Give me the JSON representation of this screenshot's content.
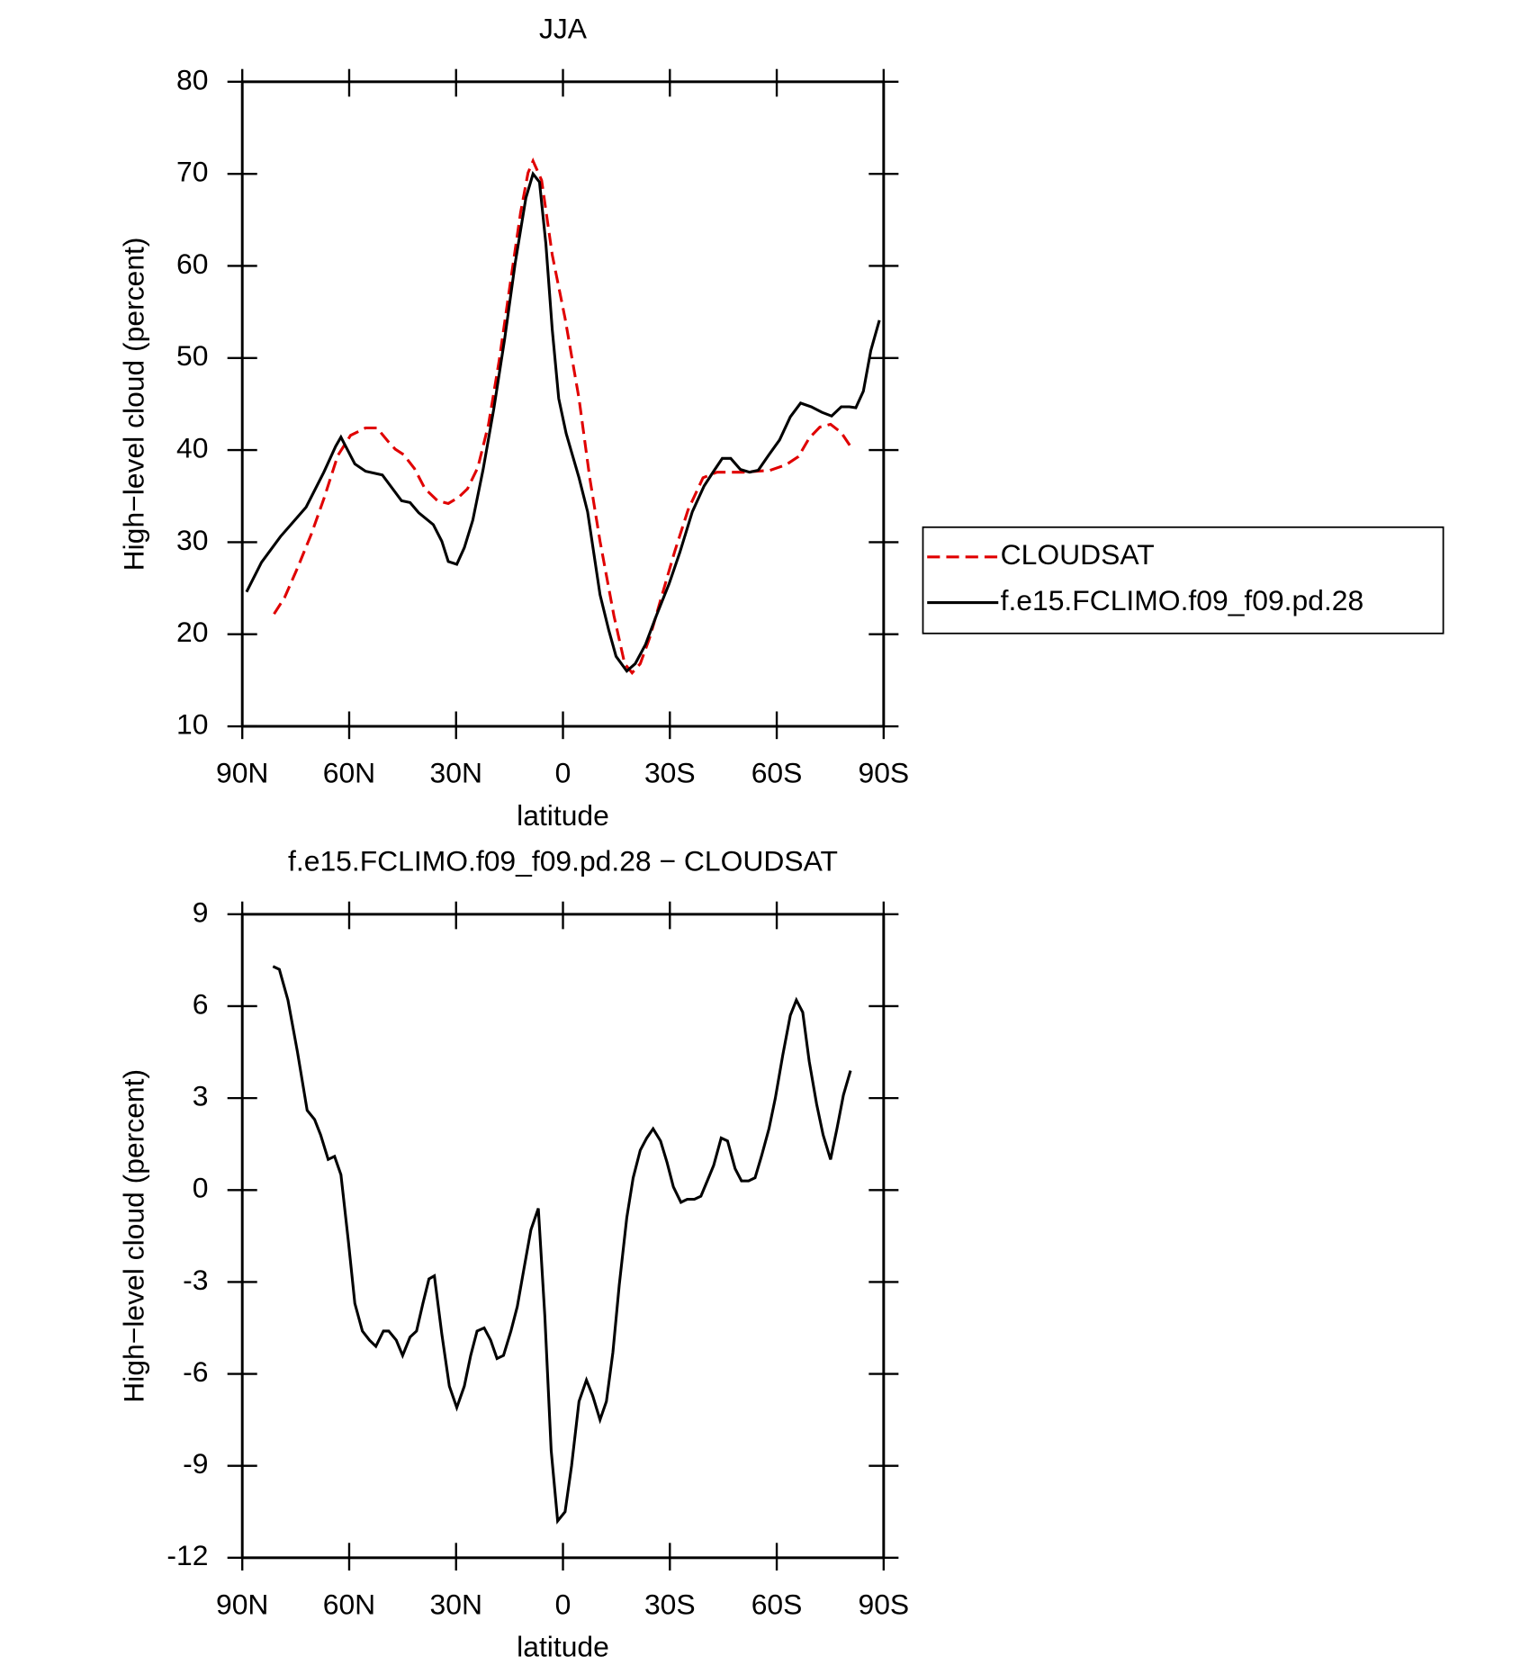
{
  "chart_data": [
    {
      "type": "line",
      "title": "JJA",
      "xlabel": "latitude",
      "ylabel": "High−level cloud (percent)",
      "xlim": [
        90,
        -90
      ],
      "xticks": [
        {
          "value": 90,
          "label": "90N"
        },
        {
          "value": 60,
          "label": "60N"
        },
        {
          "value": 30,
          "label": "30N"
        },
        0,
        {
          "value": -30,
          "label": "30S"
        },
        {
          "value": -60,
          "label": "60S"
        },
        {
          "value": -90,
          "label": "90S"
        }
      ],
      "ylim": [
        10,
        80
      ],
      "yticks": [
        10,
        20,
        30,
        40,
        50,
        60,
        70,
        80
      ],
      "legend": "right",
      "series": [
        {
          "name": "CLOUDSAT",
          "color": "#e00000",
          "linestyle": "dashed",
          "x": [
            81.1,
            78.1,
            74.5,
            70.6,
            67.1,
            63.2,
            59.6,
            55.4,
            52.2,
            49.2,
            47.1,
            44.7,
            41.7,
            38.7,
            35.2,
            32.2,
            29.2,
            26.8,
            23.9,
            20.9,
            17.9,
            14.9,
            11.9,
            9.8,
            8.4,
            6.0,
            3.0,
            -0.6,
            -4.5,
            -7.5,
            -10.4,
            -14.3,
            -17.3,
            -19.4,
            -21.7,
            -24.4,
            -27.4,
            -31.3,
            -35.1,
            -39.3,
            -43.2,
            -50.6,
            -58.1,
            -62.6,
            -66.1,
            -69.1,
            -72.1,
            -75.1,
            -78.1,
            -80.7
          ],
          "values": [
            22.2,
            24.0,
            27.2,
            30.9,
            34.7,
            39.4,
            41.6,
            42.4,
            42.4,
            41.0,
            40.1,
            39.5,
            38.0,
            35.8,
            34.5,
            34.2,
            34.9,
            35.8,
            38.1,
            42.8,
            49.7,
            57.8,
            65.8,
            70.1,
            71.4,
            69.3,
            61.2,
            54.3,
            45.6,
            37.0,
            30.1,
            22.0,
            16.8,
            15.8,
            16.8,
            19.7,
            23.7,
            28.9,
            33.5,
            37.0,
            37.6,
            37.6,
            37.8,
            38.4,
            39.3,
            41.3,
            42.5,
            42.8,
            41.9,
            40.4
          ]
        },
        {
          "name": "f.e15.FCLIMO.f09_f09.pd.28",
          "color": "#000000",
          "linestyle": "solid",
          "x": [
            88.8,
            84.6,
            79.3,
            72.1,
            67.1,
            63.8,
            62.3,
            58.4,
            55.4,
            50.7,
            45.3,
            42.9,
            40.5,
            36.4,
            34.0,
            32.2,
            29.8,
            27.7,
            25.3,
            22.4,
            19.4,
            16.4,
            13.4,
            10.4,
            8.4,
            6.6,
            4.8,
            3.0,
            1.2,
            -0.9,
            -4.5,
            -6.9,
            -10.4,
            -12.8,
            -14.9,
            -17.9,
            -20.3,
            -23.2,
            -26.2,
            -29.8,
            -32.8,
            -36.3,
            -39.6,
            -42.3,
            -44.7,
            -47.1,
            -49.8,
            -52.4,
            -54.8,
            -57.8,
            -60.8,
            -63.8,
            -66.7,
            -69.7,
            -72.7,
            -75.4,
            -78.1,
            -80.4,
            -82.2,
            -84.3,
            -86.4,
            -88.8
          ],
          "values": [
            24.6,
            27.8,
            30.6,
            33.8,
            37.6,
            40.4,
            41.4,
            38.5,
            37.7,
            37.3,
            34.5,
            34.3,
            33.2,
            31.9,
            30.1,
            27.9,
            27.6,
            29.4,
            32.4,
            37.9,
            44.5,
            52.0,
            60.3,
            67.4,
            70.0,
            69.1,
            62.4,
            53.1,
            45.6,
            41.8,
            37.0,
            33.3,
            24.3,
            20.5,
            17.6,
            16.0,
            16.8,
            18.9,
            22.0,
            25.5,
            28.9,
            33.3,
            36.1,
            37.7,
            39.1,
            39.1,
            37.9,
            37.6,
            37.8,
            39.5,
            41.1,
            43.6,
            45.1,
            44.7,
            44.1,
            43.7,
            44.7,
            44.7,
            44.6,
            46.4,
            50.8,
            54.1
          ]
        }
      ]
    },
    {
      "type": "line",
      "title": "f.e15.FCLIMO.f09_f09.pd.28 − CLOUDSAT",
      "xlabel": "latitude",
      "ylabel": "High−level cloud (percent)",
      "xlim": [
        90,
        -90
      ],
      "xticks": [
        {
          "value": 90,
          "label": "90N"
        },
        {
          "value": 60,
          "label": "60N"
        },
        {
          "value": 30,
          "label": "30N"
        },
        0,
        {
          "value": -30,
          "label": "30S"
        },
        {
          "value": -60,
          "label": "60S"
        },
        {
          "value": -90,
          "label": "90S"
        }
      ],
      "ylim": [
        -12,
        9
      ],
      "yticks": [
        -12,
        -9,
        -6,
        -3,
        0,
        3,
        6,
        9
      ],
      "series": [
        {
          "color": "#000000",
          "linestyle": "solid",
          "x": [
            81.4,
            79.6,
            77.2,
            74.5,
            71.8,
            69.7,
            68.0,
            65.9,
            64.1,
            62.3,
            60.2,
            58.4,
            56.3,
            54.3,
            52.5,
            50.4,
            48.9,
            46.8,
            45.0,
            42.9,
            41.1,
            39.3,
            37.6,
            36.1,
            34.0,
            31.9,
            29.8,
            27.7,
            25.9,
            24.1,
            22.1,
            20.3,
            18.5,
            16.7,
            14.6,
            12.8,
            11.0,
            9.0,
            6.9,
            5.1,
            3.3,
            1.5,
            -0.6,
            -2.4,
            -4.5,
            -6.6,
            -8.3,
            -10.4,
            -12.2,
            -14.0,
            -15.8,
            -17.9,
            -19.7,
            -21.7,
            -23.5,
            -25.3,
            -27.4,
            -29.2,
            -31.0,
            -33.1,
            -34.9,
            -36.9,
            -38.7,
            -40.5,
            -42.3,
            -44.4,
            -46.2,
            -48.3,
            -50.1,
            -52.1,
            -53.9,
            -55.7,
            -57.8,
            -59.6,
            -61.7,
            -63.8,
            -65.5,
            -67.3,
            -69.1,
            -71.2,
            -73.0,
            -75.1,
            -76.9,
            -78.7,
            -80.7
          ],
          "values": [
            7.3,
            7.2,
            6.2,
            4.5,
            2.6,
            2.3,
            1.8,
            1.0,
            1.1,
            0.5,
            -1.7,
            -3.7,
            -4.6,
            -4.9,
            -5.1,
            -4.6,
            -4.6,
            -4.9,
            -5.4,
            -4.8,
            -4.6,
            -3.7,
            -2.9,
            -2.8,
            -4.7,
            -6.4,
            -7.1,
            -6.4,
            -5.4,
            -4.6,
            -4.5,
            -4.9,
            -5.5,
            -5.4,
            -4.6,
            -3.8,
            -2.6,
            -1.3,
            -0.6,
            -4.1,
            -8.5,
            -10.8,
            -10.5,
            -9.0,
            -6.9,
            -6.2,
            -6.7,
            -7.5,
            -6.9,
            -5.3,
            -3.1,
            -0.9,
            0.4,
            1.3,
            1.7,
            2.0,
            1.6,
            0.9,
            0.1,
            -0.4,
            -0.3,
            -0.3,
            -0.2,
            0.3,
            0.8,
            1.7,
            1.6,
            0.7,
            0.3,
            0.3,
            0.4,
            1.1,
            2.0,
            3.0,
            4.4,
            5.7,
            6.2,
            5.8,
            4.2,
            2.8,
            1.8,
            1.0,
            2.0,
            3.1,
            3.9
          ]
        }
      ]
    }
  ]
}
